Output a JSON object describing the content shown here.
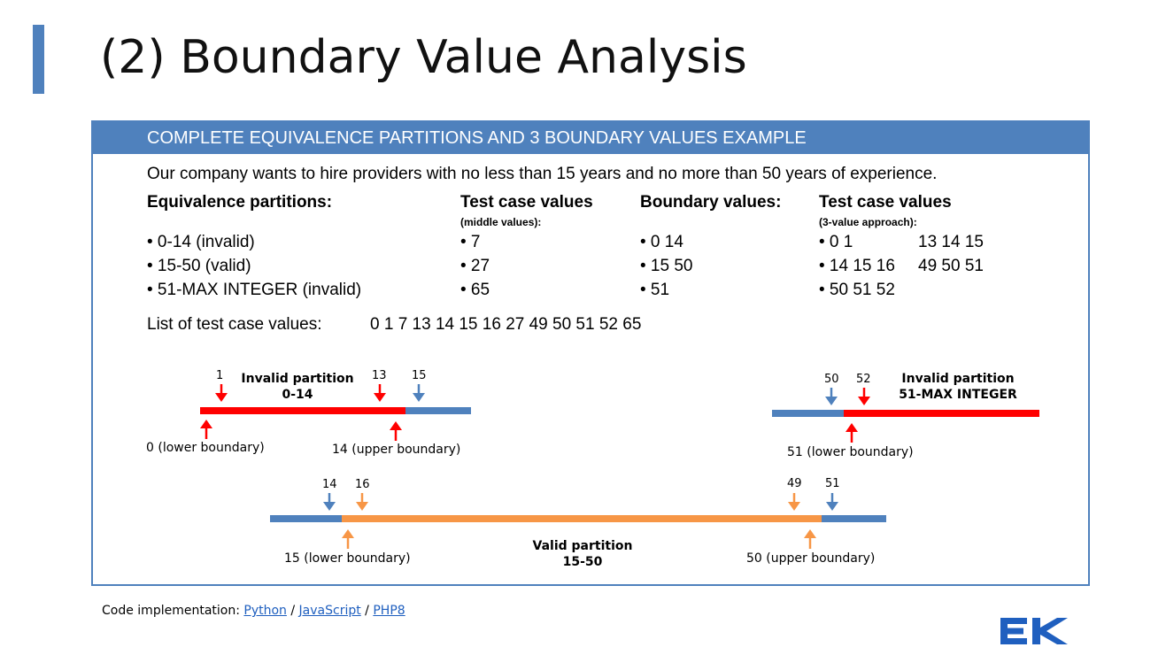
{
  "slide": {
    "title": "(2) Boundary Value Analysis"
  },
  "panel": {
    "header": "COMPLETE EQUIVALENCE PARTITIONS AND 3 BOUNDARY VALUES EXAMPLE",
    "intro": "Our company wants to hire providers with no less than 15 years and no more than 50 years of experience.",
    "columns": {
      "partitions": {
        "heading": "Equivalence partitions:",
        "items": [
          "• 0-14 (invalid)",
          "• 15-50 (valid)",
          "• 51-MAX INTEGER (invalid)"
        ]
      },
      "middle": {
        "heading": "Test case values",
        "sub": "(middle values):",
        "items": [
          "• 7",
          "• 27",
          "• 65"
        ]
      },
      "boundary": {
        "heading": "Boundary values:",
        "items": [
          "• 0 14",
          "• 15 50",
          "• 51"
        ]
      },
      "three_value": {
        "heading": "Test case values",
        "sub": "(3-value approach):",
        "items": [
          "• 0 1",
          "• 14 15 16",
          "• 50 51 52"
        ],
        "items_right": [
          "13 14 15",
          "49 50 51"
        ]
      }
    },
    "list": {
      "label": "List of test case values:",
      "values": "0 1 7 13 14 15 16 27 49 50 51 52 65"
    }
  },
  "diagram": {
    "colors": {
      "invalid": "#ff0000",
      "valid": "#f79646",
      "outside": "#4f81bd"
    },
    "invalid_low": {
      "title_line1": "Invalid partition",
      "title_line2": "0-14",
      "arrow_1": "1",
      "arrow_13": "13",
      "arrow_15": "15",
      "lower": "0 (lower boundary)",
      "upper": "14 (upper boundary)"
    },
    "invalid_high": {
      "title_line1": "Invalid partition",
      "title_line2": "51-MAX INTEGER",
      "arrow_50": "50",
      "arrow_52": "52",
      "lower": "51 (lower boundary)"
    },
    "valid": {
      "title_line1": "Valid partition",
      "title_line2": "15-50",
      "arrow_14": "14",
      "arrow_16": "16",
      "arrow_49": "49",
      "arrow_51": "51",
      "lower": "15 (lower boundary)",
      "upper": "50 (upper boundary)"
    }
  },
  "footer": {
    "label": "Code implementation:",
    "links": [
      "Python",
      "JavaScript",
      "PHP8"
    ],
    "separator": " / "
  },
  "logo": {
    "text": "EK",
    "color": "#1f5fbf"
  }
}
